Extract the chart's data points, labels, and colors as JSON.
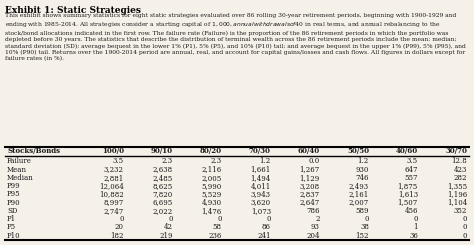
{
  "title": "Exhibit 1: Static Strategies",
  "description": "This exhibit shows summary statistics for eight static strategies evaluated over 86 rolling 30-year retirement periods, beginning with 1900-1929 and ending with 1985-2014. All strategies consider a starting capital of $1,000, annual withdrawals of $40 in real terms, and annual rebalancing to the stock/bond allocations indicated in the first row. The failure rate (Failure) is the proportion of the 86 retirement periods in which the portfolio was depleted before 30 years. The statistics that describe the distribution of terminal wealth across the 86 retirement periods include the mean; median; standard deviation (SD); average bequest in the lower 1% (P1), 5% (P5), and 10% (P10) tail; and average bequest in the upper 1% (P99), 5% (P95), and 10% (P90) tail. Returns over the 1900-2014 period are annual, real, and account for capital gains/losses and cash flows. All figures in dollars except for failure rates (in %).",
  "col_headers": [
    "Stocks/Bonds",
    "100/0",
    "90/10",
    "80/20",
    "70/30",
    "60/40",
    "50/50",
    "40/60",
    "30/70"
  ],
  "rows": [
    [
      "Failure",
      "3.5",
      "2.3",
      "2.3",
      "1.2",
      "0.0",
      "1.2",
      "3.5",
      "12.8"
    ],
    [
      "Mean",
      "3,232",
      "2,638",
      "2,116",
      "1,661",
      "1,267",
      "930",
      "647",
      "423"
    ],
    [
      "Median",
      "2,881",
      "2,485",
      "2,005",
      "1,494",
      "1,129",
      "746",
      "557",
      "282"
    ],
    [
      "P99",
      "12,064",
      "8,625",
      "5,990",
      "4,011",
      "3,208",
      "2,493",
      "1,875",
      "1,355"
    ],
    [
      "P95",
      "10,882",
      "7,820",
      "5,529",
      "3,943",
      "2,837",
      "2,161",
      "1,613",
      "1,196"
    ],
    [
      "P90",
      "8,997",
      "6,695",
      "4,930",
      "3,620",
      "2,647",
      "2,007",
      "1,507",
      "1,104"
    ],
    [
      "SD",
      "2,747",
      "2,022",
      "1,476",
      "1,073",
      "786",
      "589",
      "456",
      "352"
    ],
    [
      "P1",
      "0",
      "0",
      "0",
      "0",
      "2",
      "0",
      "0",
      "0"
    ],
    [
      "P5",
      "20",
      "42",
      "58",
      "86",
      "93",
      "38",
      "1",
      "0"
    ],
    [
      "P10",
      "182",
      "219",
      "236",
      "241",
      "204",
      "152",
      "36",
      "0"
    ]
  ],
  "bg_color": "#f5f0e8",
  "header_line_color": "#000000",
  "text_color": "#1a1a1a",
  "title_color": "#000000"
}
